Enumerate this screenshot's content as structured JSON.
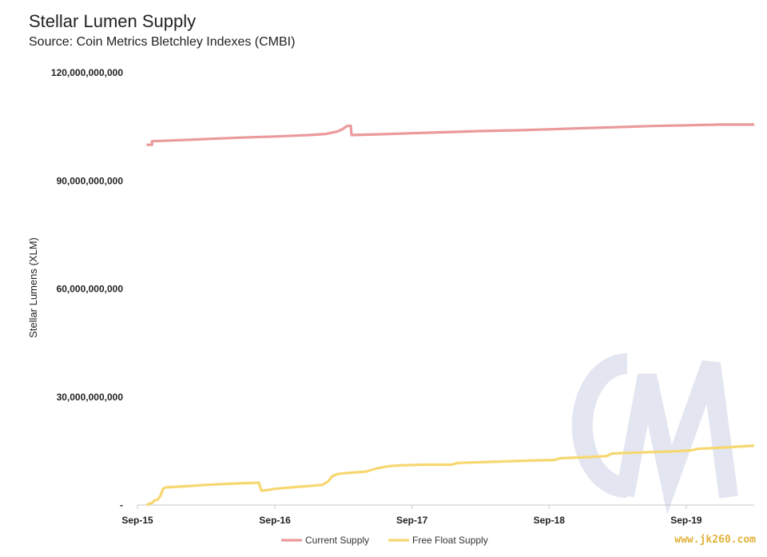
{
  "chart_data": {
    "type": "line",
    "title": "Stellar Lumen Supply",
    "subtitle": "Source: Coin Metrics Bletchley Indexes (CMBI)",
    "ylabel": "Stellar Lumens (XLM)",
    "xlabel": "",
    "ylim": [
      0,
      120000000000
    ],
    "yticks": [
      {
        "value": 0,
        "label": "-"
      },
      {
        "value": 30000000000,
        "label": "30,000,000,000"
      },
      {
        "value": 60000000000,
        "label": "60,000,000,000"
      },
      {
        "value": 90000000000,
        "label": "90,000,000,000"
      },
      {
        "value": 120000000000,
        "label": "120,000,000,000"
      }
    ],
    "xlim": [
      "2015-09-01",
      "2020-02-29"
    ],
    "xticks": [
      {
        "date": "2015-09-01",
        "label": "Sep-15"
      },
      {
        "date": "2016-09-01",
        "label": "Sep-16"
      },
      {
        "date": "2017-09-01",
        "label": "Sep-17"
      },
      {
        "date": "2018-09-01",
        "label": "Sep-18"
      },
      {
        "date": "2019-09-01",
        "label": "Sep-19"
      }
    ],
    "legend_position": "bottom",
    "grid": false,
    "series": [
      {
        "name": "Current Supply",
        "color": "#eb9a9c",
        "points": [
          [
            "2015-09-25",
            100000000000
          ],
          [
            "2015-10-10",
            100000000000
          ],
          [
            "2015-10-10",
            101000000000
          ],
          [
            "2015-12-01",
            101200000000
          ],
          [
            "2016-03-01",
            101600000000
          ],
          [
            "2016-06-01",
            102000000000
          ],
          [
            "2016-09-01",
            102300000000
          ],
          [
            "2016-12-01",
            102700000000
          ],
          [
            "2017-01-15",
            103000000000
          ],
          [
            "2017-02-15",
            103700000000
          ],
          [
            "2017-03-01",
            104400000000
          ],
          [
            "2017-03-12",
            105200000000
          ],
          [
            "2017-03-22",
            105300000000
          ],
          [
            "2017-03-24",
            102700000000
          ],
          [
            "2017-06-01",
            102900000000
          ],
          [
            "2017-09-01",
            103200000000
          ],
          [
            "2017-12-01",
            103500000000
          ],
          [
            "2018-03-01",
            103800000000
          ],
          [
            "2018-06-01",
            104000000000
          ],
          [
            "2018-09-01",
            104300000000
          ],
          [
            "2018-12-01",
            104600000000
          ],
          [
            "2019-03-01",
            104900000000
          ],
          [
            "2019-06-01",
            105200000000
          ],
          [
            "2019-09-01",
            105400000000
          ],
          [
            "2019-12-01",
            105600000000
          ],
          [
            "2020-02-29",
            105600000000
          ]
        ]
      },
      {
        "name": "Free Float Supply",
        "color": "#f7d770",
        "points": [
          [
            "2015-09-25",
            0
          ],
          [
            "2015-10-05",
            500000000
          ],
          [
            "2015-10-10",
            500000000
          ],
          [
            "2015-10-15",
            1200000000
          ],
          [
            "2015-10-25",
            1500000000
          ],
          [
            "2015-11-01",
            2500000000
          ],
          [
            "2015-11-08",
            4500000000
          ],
          [
            "2015-11-15",
            4900000000
          ],
          [
            "2016-01-01",
            5200000000
          ],
          [
            "2016-03-01",
            5600000000
          ],
          [
            "2016-05-01",
            5900000000
          ],
          [
            "2016-07-20",
            6200000000
          ],
          [
            "2016-07-27",
            4000000000
          ],
          [
            "2016-08-15",
            4200000000
          ],
          [
            "2016-09-01",
            4500000000
          ],
          [
            "2016-10-15",
            4900000000
          ],
          [
            "2016-12-01",
            5300000000
          ],
          [
            "2017-01-05",
            5600000000
          ],
          [
            "2017-01-20",
            6500000000
          ],
          [
            "2017-02-01",
            8000000000
          ],
          [
            "2017-02-15",
            8600000000
          ],
          [
            "2017-03-01",
            8800000000
          ],
          [
            "2017-05-01",
            9300000000
          ],
          [
            "2017-06-01",
            10200000000
          ],
          [
            "2017-07-01",
            10800000000
          ],
          [
            "2017-08-01",
            11000000000
          ],
          [
            "2017-10-01",
            11200000000
          ],
          [
            "2017-12-15",
            11200000000
          ],
          [
            "2018-01-01",
            11700000000
          ],
          [
            "2018-04-01",
            12000000000
          ],
          [
            "2018-07-01",
            12300000000
          ],
          [
            "2018-09-15",
            12500000000
          ],
          [
            "2018-10-01",
            13000000000
          ],
          [
            "2018-12-15",
            13300000000
          ],
          [
            "2019-02-01",
            13600000000
          ],
          [
            "2019-02-15",
            14300000000
          ],
          [
            "2019-05-01",
            14600000000
          ],
          [
            "2019-08-01",
            14900000000
          ],
          [
            "2019-09-15",
            15200000000
          ],
          [
            "2019-10-01",
            15600000000
          ],
          [
            "2019-12-15",
            16000000000
          ],
          [
            "2020-02-29",
            16500000000
          ]
        ]
      }
    ]
  },
  "watermark": {
    "logo_letters": "CM",
    "logo_color": "#e3e6f1",
    "site_text": "www.jk260.com",
    "site_color": "#e2b23a"
  }
}
